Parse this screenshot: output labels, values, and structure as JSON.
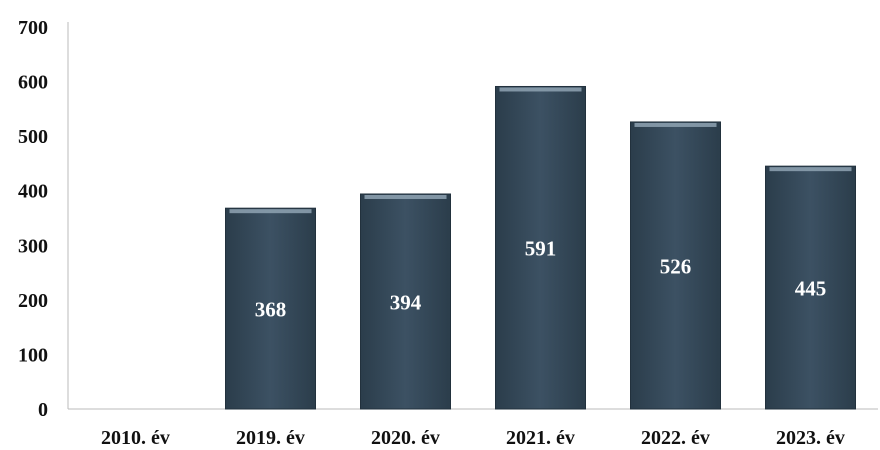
{
  "chart_data": {
    "type": "bar",
    "categories": [
      "2010. év",
      "2019. év",
      "2020. év",
      "2021. év",
      "2022. év",
      "2023. év"
    ],
    "values": [
      0,
      368,
      394,
      591,
      526,
      445
    ],
    "data_labels": [
      "",
      "368",
      "394",
      "591",
      "526",
      "445"
    ],
    "y_ticks": [
      "0",
      "100",
      "200",
      "300",
      "400",
      "500",
      "600",
      "700"
    ],
    "ylim": [
      0,
      700
    ],
    "grid": false,
    "legend": "none",
    "bar_color": "#34495a",
    "bar_top_color": "#8fa3b3"
  }
}
